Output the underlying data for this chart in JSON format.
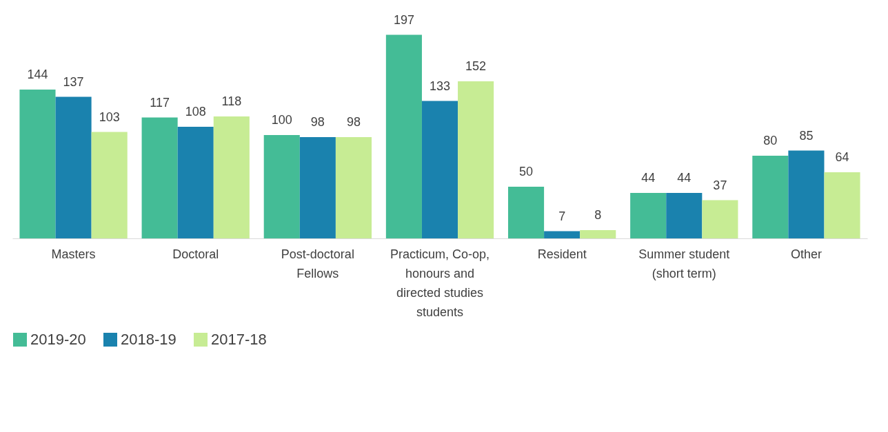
{
  "chart_data": {
    "type": "bar",
    "categories": [
      "Masters",
      "Doctoral",
      "Post-doctoral Fellows",
      "Practicum, Co-op, honours and directed studies students",
      "Resident",
      "Summer student (short term)",
      "Other"
    ],
    "series": [
      {
        "name": "2019-20",
        "color": "#44bc96",
        "values": [
          144,
          117,
          100,
          197,
          50,
          44,
          80
        ]
      },
      {
        "name": "2018-19",
        "color": "#1a82ae",
        "values": [
          137,
          108,
          98,
          133,
          7,
          44,
          85
        ]
      },
      {
        "name": "2017-18",
        "color": "#c7ec94",
        "values": [
          103,
          118,
          98,
          152,
          8,
          37,
          64
        ]
      }
    ],
    "data_labels": true,
    "legend": "bottom left"
  }
}
